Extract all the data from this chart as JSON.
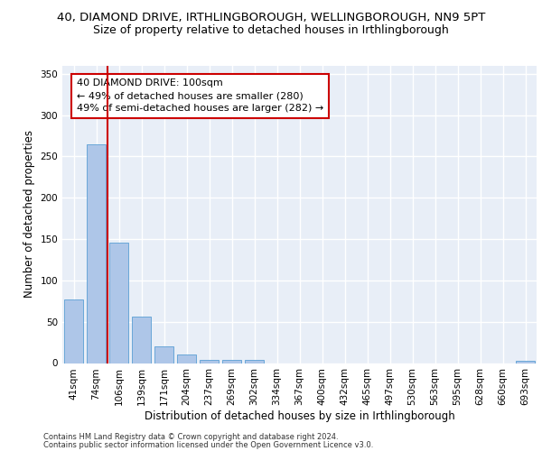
{
  "title_line1": "40, DIAMOND DRIVE, IRTHLINGBOROUGH, WELLINGBOROUGH, NN9 5PT",
  "title_line2": "Size of property relative to detached houses in Irthlingborough",
  "xlabel": "Distribution of detached houses by size in Irthlingborough",
  "ylabel": "Number of detached properties",
  "footer_line1": "Contains HM Land Registry data © Crown copyright and database right 2024.",
  "footer_line2": "Contains public sector information licensed under the Open Government Licence v3.0.",
  "bar_labels": [
    "41sqm",
    "74sqm",
    "106sqm",
    "139sqm",
    "171sqm",
    "204sqm",
    "237sqm",
    "269sqm",
    "302sqm",
    "334sqm",
    "367sqm",
    "400sqm",
    "432sqm",
    "465sqm",
    "497sqm",
    "530sqm",
    "563sqm",
    "595sqm",
    "628sqm",
    "660sqm",
    "693sqm"
  ],
  "bar_values": [
    77,
    265,
    146,
    56,
    20,
    10,
    4,
    4,
    4,
    0,
    0,
    0,
    0,
    0,
    0,
    0,
    0,
    0,
    0,
    0,
    3
  ],
  "bar_color": "#aec6e8",
  "bar_edge_color": "#5a9fd4",
  "vline_color": "#cc0000",
  "annotation_text": "40 DIAMOND DRIVE: 100sqm\n← 49% of detached houses are smaller (280)\n49% of semi-detached houses are larger (282) →",
  "annotation_box_color": "#ffffff",
  "annotation_box_edge_color": "#cc0000",
  "ylim": [
    0,
    360
  ],
  "yticks": [
    0,
    50,
    100,
    150,
    200,
    250,
    300,
    350
  ],
  "bg_color": "#e8eef7",
  "grid_color": "#ffffff",
  "title1_fontsize": 9.5,
  "title2_fontsize": 9,
  "axis_label_fontsize": 8.5,
  "tick_fontsize": 7.5,
  "annotation_fontsize": 8,
  "footer_fontsize": 6
}
